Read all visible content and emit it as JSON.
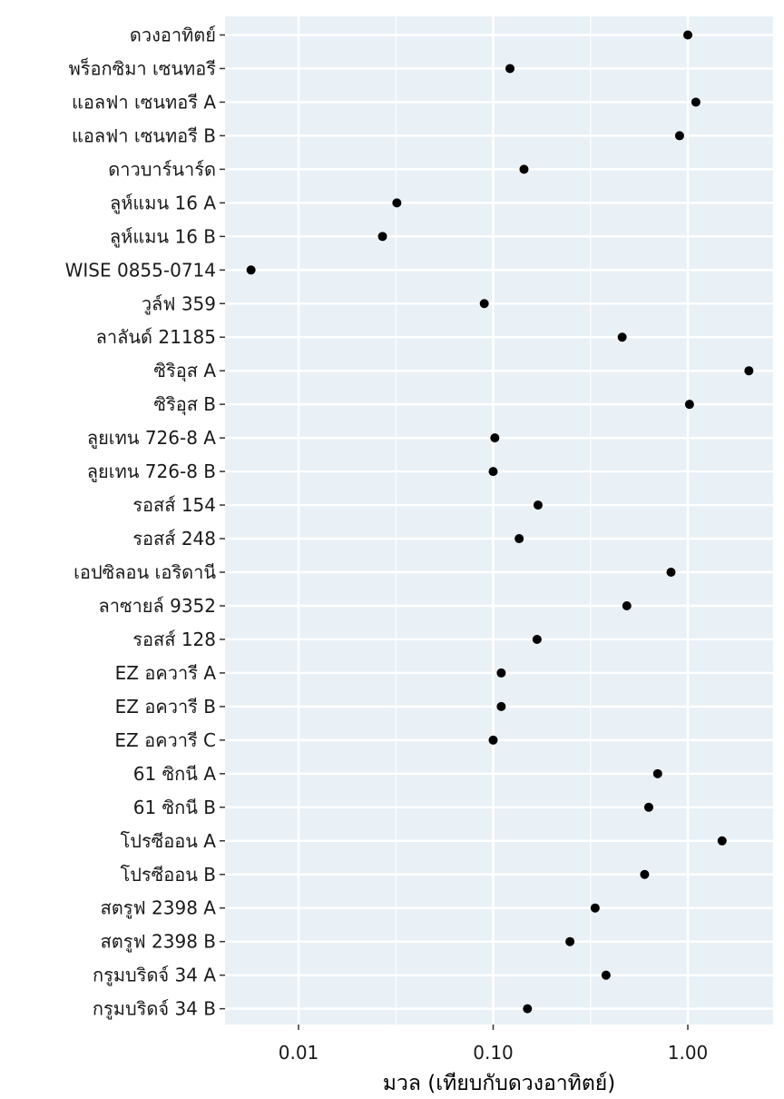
{
  "chart_data": {
    "type": "scatter",
    "xlabel": "มวล (เทียบกับดวงอาทิตย์)",
    "ylabel": "",
    "x_scale": "log",
    "xlim": [
      0.0045,
      2.4
    ],
    "x_ticks": [
      0.01,
      0.1,
      1.0
    ],
    "x_tick_labels": [
      "0.01",
      "0.10",
      "1.00"
    ],
    "grid": true,
    "colors": {
      "panel": "#e9f1f7",
      "grid": "#ffffff",
      "point": "#000000"
    },
    "points": [
      {
        "label": "ดวงอาทิตย์",
        "value": 1.0
      },
      {
        "label": "พร็อกซิมา เซนทอรี",
        "value": 0.122
      },
      {
        "label": "แอลฟา เซนทอรี A",
        "value": 1.1
      },
      {
        "label": "แอลฟา เซนทอรี B",
        "value": 0.907
      },
      {
        "label": "ดาวบาร์นาร์ด",
        "value": 0.144
      },
      {
        "label": "ลูห์แมน 16 A",
        "value": 0.032
      },
      {
        "label": "ลูห์แมน 16 B",
        "value": 0.027
      },
      {
        "label": "WISE 0855-0714",
        "value": 0.0057
      },
      {
        "label": "วูล์ฟ 359",
        "value": 0.09
      },
      {
        "label": "ลาลันด์ 21185",
        "value": 0.46
      },
      {
        "label": "ซิริอุส A",
        "value": 2.06
      },
      {
        "label": "ซิริอุส B",
        "value": 1.02
      },
      {
        "label": "ลูยเทน 726-8 A",
        "value": 0.102
      },
      {
        "label": "ลูยเทน 726-8 B",
        "value": 0.1
      },
      {
        "label": "รอสส์ 154",
        "value": 0.17
      },
      {
        "label": "รอสส์ 248",
        "value": 0.136
      },
      {
        "label": "เอปซิลอน เอริดานี",
        "value": 0.82
      },
      {
        "label": "ลาซายล์ 9352",
        "value": 0.486
      },
      {
        "label": "รอสส์ 128",
        "value": 0.168
      },
      {
        "label": "EZ อควารี A",
        "value": 0.11
      },
      {
        "label": "EZ อควารี B",
        "value": 0.11
      },
      {
        "label": "EZ อควารี C",
        "value": 0.1
      },
      {
        "label": "61 ซิกนี A",
        "value": 0.7
      },
      {
        "label": "61 ซิกนี B",
        "value": 0.63
      },
      {
        "label": "โปรซีออน A",
        "value": 1.5
      },
      {
        "label": "โปรซีออน B",
        "value": 0.6
      },
      {
        "label": "สตรูฟ 2398 A",
        "value": 0.334
      },
      {
        "label": "สตรูฟ 2398 B",
        "value": 0.248
      },
      {
        "label": "กรูมบริดจ์ 34 A",
        "value": 0.38
      },
      {
        "label": "กรูมบริดจ์ 34 B",
        "value": 0.15
      }
    ]
  }
}
